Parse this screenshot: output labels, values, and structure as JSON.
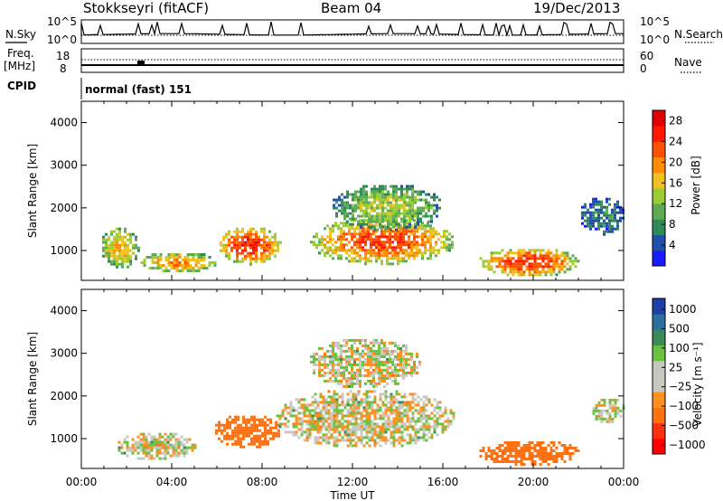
{
  "header": {
    "station": "Stokkseyri (fitACF)",
    "beam": "Beam 04",
    "date": "19/Dec/2013"
  },
  "top_strip": {
    "left_label": "N.Sky",
    "right_label": "N.Search",
    "left_ticks": [
      "10^5",
      "10^0"
    ],
    "right_ticks": [
      "10^5",
      "10^0"
    ]
  },
  "freq_strip": {
    "label_line1": "Freq.",
    "label_line2": "[MHz]",
    "left_ticks": [
      "18",
      "8"
    ],
    "right_ticks": [
      "60",
      "0"
    ],
    "right_label": "Nave"
  },
  "cpid": {
    "label": "CPID",
    "value": "normal (fast) 151"
  },
  "colors": {
    "power": [
      "#1a1aff",
      "#1f4fa8",
      "#2e8b57",
      "#5faa55",
      "#9acd32",
      "#f0c020",
      "#ff8c00",
      "#ff5000",
      "#ff1a00",
      "#e00000"
    ],
    "velocity": [
      "#1f3faa",
      "#2f6fa0",
      "#3a8a5a",
      "#6ac040",
      "#c8c8c0",
      "#c8c8c0",
      "#ff9020",
      "#ff7010",
      "#ff3010",
      "#ff0000"
    ]
  },
  "chart_data": [
    {
      "type": "heatmap",
      "title": "",
      "ylabel": "Slant Range [km]",
      "xlabel": "",
      "ylim": [
        300,
        4500
      ],
      "xlim": [
        0,
        24
      ],
      "yticks": [
        "4000",
        "3000",
        "2000",
        "1000"
      ],
      "ytick_values": [
        4000,
        3000,
        2000,
        1000
      ],
      "xticks": [
        "00:00",
        "04:00",
        "08:00",
        "12:00",
        "16:00",
        "20:00",
        "00:00"
      ],
      "colorbar": {
        "label": "Power [dB]",
        "ticks": [
          "28",
          "24",
          "20",
          "16",
          "12",
          "8",
          "4"
        ],
        "tick_values": [
          28,
          24,
          20,
          16,
          12,
          8,
          4
        ],
        "range": [
          0,
          30
        ]
      },
      "echo_regions": [
        {
          "t0": 0.8,
          "t1": 2.5,
          "r0": 600,
          "r1": 1600,
          "dB": 18
        },
        {
          "t0": 2.5,
          "t1": 6.0,
          "r0": 500,
          "r1": 1000,
          "dB": 20
        },
        {
          "t0": 6.0,
          "t1": 8.8,
          "r0": 700,
          "r1": 1600,
          "dB": 26
        },
        {
          "t0": 10.0,
          "t1": 16.5,
          "r0": 700,
          "r1": 1800,
          "dB": 24
        },
        {
          "t0": 11.0,
          "t1": 16.0,
          "r0": 1500,
          "r1": 2600,
          "dB": 14
        },
        {
          "t0": 17.5,
          "t1": 22.0,
          "r0": 400,
          "r1": 1100,
          "dB": 25
        },
        {
          "t0": 22.0,
          "t1": 24.0,
          "r0": 1400,
          "r1": 2300,
          "dB": 8
        }
      ]
    },
    {
      "type": "heatmap",
      "title": "",
      "ylabel": "Slant Range [km]",
      "xlabel": "Time UT",
      "ylim": [
        300,
        4500
      ],
      "xlim": [
        0,
        24
      ],
      "yticks": [
        "4000",
        "3000",
        "2000",
        "1000"
      ],
      "ytick_values": [
        4000,
        3000,
        2000,
        1000
      ],
      "xticks": [
        "00:00",
        "04:00",
        "08:00",
        "12:00",
        "16:00",
        "20:00",
        "00:00"
      ],
      "colorbar": {
        "label": "Velocity [m s⁻¹]",
        "ticks": [
          "1000",
          "500",
          "100",
          "25",
          "−25",
          "−100",
          "−500",
          "−1000"
        ],
        "tick_values": [
          1000,
          500,
          100,
          25,
          -25,
          -100,
          -500,
          -1000
        ]
      },
      "echo_regions": [
        {
          "t0": 1.5,
          "t1": 5.0,
          "r0": 500,
          "r1": 1200,
          "v": 0
        },
        {
          "t0": 5.8,
          "t1": 8.8,
          "r0": 800,
          "r1": 1600,
          "v": -300
        },
        {
          "t0": 8.5,
          "t1": 16.5,
          "r0": 800,
          "r1": 2200,
          "v": 0
        },
        {
          "t0": 10.0,
          "t1": 15.0,
          "r0": 2200,
          "r1": 3400,
          "v": 0
        },
        {
          "t0": 17.5,
          "t1": 22.0,
          "r0": 400,
          "r1": 1000,
          "v": -400
        },
        {
          "t0": 22.5,
          "t1": 24.0,
          "r0": 1400,
          "r1": 2000,
          "v": 0
        }
      ]
    }
  ]
}
